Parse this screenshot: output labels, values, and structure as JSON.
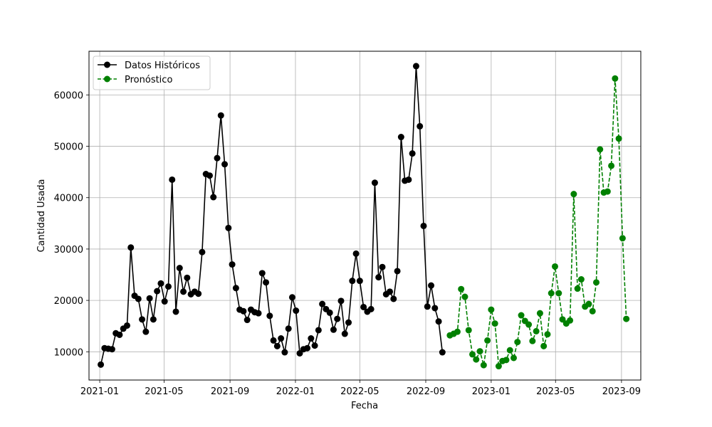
{
  "chart_data": {
    "type": "line",
    "xlabel": "Fecha",
    "ylabel": "Cantidad Usada",
    "x_tick_labels": [
      "2021-01",
      "2021-05",
      "2021-09",
      "2022-01",
      "2022-05",
      "2022-09",
      "2023-01",
      "2023-05",
      "2023-09"
    ],
    "y_tick_labels": [
      "10000",
      "20000",
      "30000",
      "40000",
      "50000",
      "60000"
    ],
    "ylim": [
      4500,
      68500
    ],
    "xlim": [
      "2020-12-12",
      "2023-10-07"
    ],
    "grid": true,
    "legend_position": "top-left",
    "series": [
      {
        "name": "Datos Históricos",
        "color": "#000000",
        "line_style": "solid",
        "marker": "circle",
        "start_date": "2021-01-03",
        "interval_days": 7,
        "values": [
          7500,
          10700,
          10600,
          10500,
          13600,
          13300,
          14500,
          15100,
          30300,
          20900,
          20300,
          16300,
          13900,
          20400,
          16300,
          21800,
          23300,
          19800,
          22700,
          43500,
          17800,
          26300,
          21700,
          24400,
          21200,
          21700,
          21300,
          29400,
          44600,
          44300,
          40100,
          47700,
          56000,
          46500,
          34100,
          27000,
          22400,
          18200,
          17900,
          16200,
          18200,
          17700,
          17500,
          25300,
          23500,
          17000,
          12200,
          11100,
          12600,
          9900,
          14500,
          20600,
          18000,
          9700,
          10500,
          10700,
          12600,
          11200,
          14200,
          19300,
          18300,
          17600,
          14300,
          16400,
          19900,
          13500,
          15700,
          23800,
          29100,
          23800,
          18700,
          17800,
          18300,
          42900,
          24500,
          26500,
          21200,
          21700,
          20300,
          25700,
          51800,
          43300,
          43500,
          48600,
          65600,
          53900,
          34500,
          18800,
          22900,
          18500,
          15900,
          9900
        ]
      },
      {
        "name": "Pronóstico",
        "color": "#008000",
        "line_style": "dashed",
        "marker": "circle",
        "start_date": "2022-10-16",
        "interval_days": 7,
        "values": [
          13200,
          13500,
          13900,
          22200,
          20700,
          14200,
          9500,
          8500,
          10100,
          7400,
          12200,
          18200,
          15500,
          7200,
          8200,
          8400,
          10300,
          8800,
          11900,
          17100,
          16000,
          15300,
          12100,
          14000,
          17500,
          11100,
          13400,
          21400,
          26600,
          21400,
          16300,
          15500,
          16100,
          40700,
          22300,
          24100,
          18800,
          19300,
          17900,
          23500,
          49400,
          41000,
          41200,
          46200,
          63200,
          51500,
          32100,
          16400
        ]
      }
    ]
  }
}
